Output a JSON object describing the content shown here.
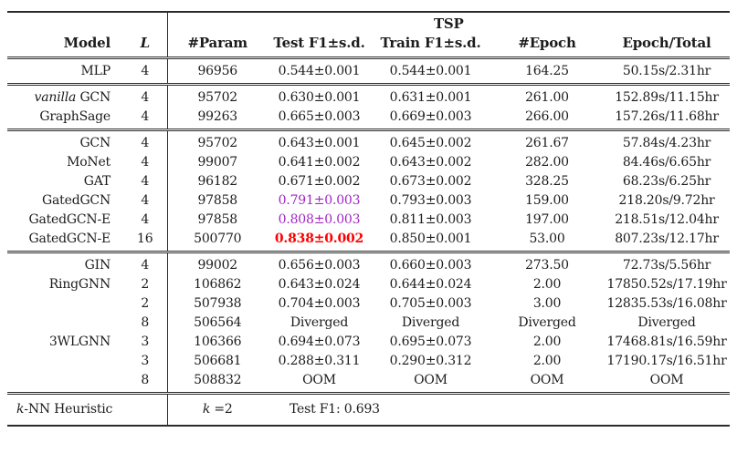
{
  "table": {
    "group_header": "TSP",
    "columns": [
      "Model",
      "L",
      "#Param",
      "Test F1±s.d.",
      "Train F1±s.d.",
      "#Epoch",
      "Epoch/Total"
    ],
    "sections": [
      {
        "rows": [
          {
            "model": "MLP",
            "L": "4",
            "param": "96956",
            "test": "0.544±0.001",
            "train": "0.544±0.001",
            "epoch": "164.25",
            "time": "50.15s/2.31hr"
          }
        ]
      },
      {
        "rows": [
          {
            "model_italic": "vanilla",
            "model": " GCN",
            "L": "4",
            "param": "95702",
            "test": "0.630±0.001",
            "train": "0.631±0.001",
            "epoch": "261.00",
            "time": "152.89s/11.15hr"
          },
          {
            "model": "GraphSage",
            "L": "4",
            "param": "99263",
            "test": "0.665±0.003",
            "train": "0.669±0.003",
            "epoch": "266.00",
            "time": "157.26s/11.68hr"
          }
        ]
      },
      {
        "rows": [
          {
            "model": "GCN",
            "L": "4",
            "param": "95702",
            "test": "0.643±0.001",
            "train": "0.645±0.002",
            "epoch": "261.67",
            "time": "57.84s/4.23hr"
          },
          {
            "model": "MoNet",
            "L": "4",
            "param": "99007",
            "test": "0.641±0.002",
            "train": "0.643±0.002",
            "epoch": "282.00",
            "time": "84.46s/6.65hr"
          },
          {
            "model": "GAT",
            "L": "4",
            "param": "96182",
            "test": "0.671±0.002",
            "train": "0.673±0.002",
            "epoch": "328.25",
            "time": "68.23s/6.25hr"
          },
          {
            "model": "GatedGCN",
            "L": "4",
            "param": "97858",
            "test": "0.791±0.003",
            "test_color": "purple",
            "train": "0.793±0.003",
            "epoch": "159.00",
            "time": "218.20s/9.72hr"
          },
          {
            "model": "GatedGCN-E",
            "L": "4",
            "param": "97858",
            "test": "0.808±0.003",
            "test_color": "purple",
            "train": "0.811±0.003",
            "epoch": "197.00",
            "time": "218.51s/12.04hr"
          },
          {
            "model": "GatedGCN-E",
            "L": "16",
            "param": "500770",
            "test": "0.838±0.002",
            "test_color": "red",
            "train": "0.850±0.001",
            "epoch": "53.00",
            "time": "807.23s/12.17hr"
          }
        ]
      },
      {
        "rows": [
          {
            "model": "GIN",
            "L": "4",
            "param": "99002",
            "test": "0.656±0.003",
            "train": "0.660±0.003",
            "epoch": "273.50",
            "time": "72.73s/5.56hr"
          },
          {
            "model": "RingGNN",
            "L": "2",
            "param": "106862",
            "test": "0.643±0.024",
            "train": "0.644±0.024",
            "epoch": "2.00",
            "time": "17850.52s/17.19hr"
          },
          {
            "model": "",
            "L": "2",
            "param": "507938",
            "test": "0.704±0.003",
            "train": "0.705±0.003",
            "epoch": "3.00",
            "time": "12835.53s/16.08hr"
          },
          {
            "model": "",
            "L": "8",
            "param": "506564",
            "test": "Diverged",
            "train": "Diverged",
            "epoch": "Diverged",
            "time": "Diverged"
          },
          {
            "model": "3WLGNN",
            "L": "3",
            "param": "106366",
            "test": "0.694±0.073",
            "train": "0.695±0.073",
            "epoch": "2.00",
            "time": "17468.81s/16.59hr"
          },
          {
            "model": "",
            "L": "3",
            "param": "506681",
            "test": "0.288±0.311",
            "train": "0.290±0.312",
            "epoch": "2.00",
            "time": "17190.17s/16.51hr"
          },
          {
            "model": "",
            "L": "8",
            "param": "508832",
            "test": "OOM",
            "train": "OOM",
            "epoch": "OOM",
            "time": "OOM"
          }
        ]
      }
    ],
    "footer": {
      "model_italic": "k",
      "model_rest": "-NN Heuristic",
      "param_italic": "k",
      "param_rest": " =2",
      "note": "Test F1: 0.693"
    }
  },
  "colors": {
    "highlight_purple": "#a226c3",
    "highlight_red": "#ff0000",
    "text": "#1c1c1c"
  }
}
